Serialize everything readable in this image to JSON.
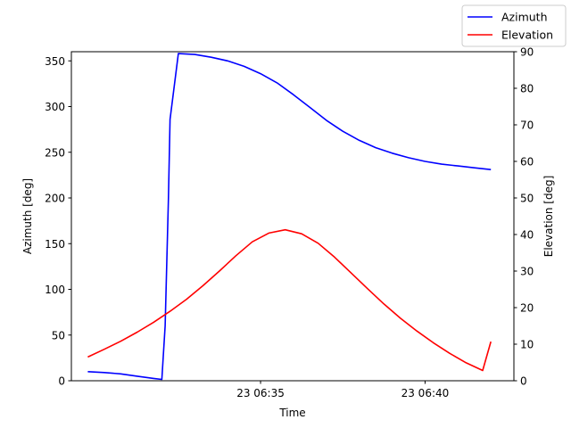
{
  "chart_data": {
    "type": "line",
    "xlabel": "Time",
    "ylabel_left": "Azimuth [deg]",
    "ylabel_right": "Elevation [deg]",
    "x_unit": "minutes after 06:30",
    "x_ticks": [
      {
        "value": 5,
        "label": "23 06:35"
      },
      {
        "value": 10,
        "label": "23 06:40"
      }
    ],
    "xlim": [
      -0.75,
      12.7
    ],
    "ylim_left": [
      0,
      360
    ],
    "ylim_right": [
      0,
      90
    ],
    "y_ticks_left": [
      0,
      50,
      100,
      150,
      200,
      250,
      300,
      350
    ],
    "y_ticks_right": [
      0,
      10,
      20,
      30,
      40,
      50,
      60,
      70,
      80,
      90
    ],
    "grid": false,
    "legend": {
      "placement": "top-right",
      "entries": [
        "Azimuth",
        "Elevation"
      ]
    },
    "series": [
      {
        "name": "Azimuth",
        "axis": "left",
        "color": "#0000ff",
        "x": [
          -0.25,
          0.25,
          0.75,
          1.25,
          1.75,
          2.0,
          2.1,
          2.2,
          2.25,
          2.5,
          3.0,
          3.5,
          4.0,
          4.5,
          5.0,
          5.5,
          6.0,
          6.5,
          7.0,
          7.5,
          8.0,
          8.5,
          9.0,
          9.5,
          10.0,
          10.5,
          11.0,
          11.5,
          12.0
        ],
        "y": [
          10,
          9,
          7.5,
          5,
          2.5,
          1.5,
          60,
          200,
          286,
          358,
          357,
          354,
          350,
          344,
          336,
          326,
          313,
          299,
          285,
          273,
          263,
          255,
          249,
          244,
          240,
          237,
          235,
          233,
          231
        ]
      },
      {
        "name": "Elevation",
        "axis": "right",
        "color": "#ff0000",
        "x": [
          -0.25,
          0.25,
          0.75,
          1.25,
          1.75,
          2.25,
          2.75,
          3.25,
          3.75,
          4.25,
          4.75,
          5.25,
          5.75,
          6.25,
          6.75,
          7.25,
          7.75,
          8.25,
          8.75,
          9.25,
          9.75,
          10.25,
          10.75,
          11.25,
          11.75,
          12.0
        ],
        "y": [
          6.5,
          8.6,
          10.8,
          13.3,
          16.0,
          19.0,
          22.3,
          26.0,
          30.0,
          34.2,
          38.0,
          40.4,
          41.3,
          40.2,
          37.6,
          33.8,
          29.5,
          25.2,
          21.0,
          17.1,
          13.6,
          10.4,
          7.5,
          4.9,
          2.8,
          10.7
        ]
      }
    ]
  }
}
